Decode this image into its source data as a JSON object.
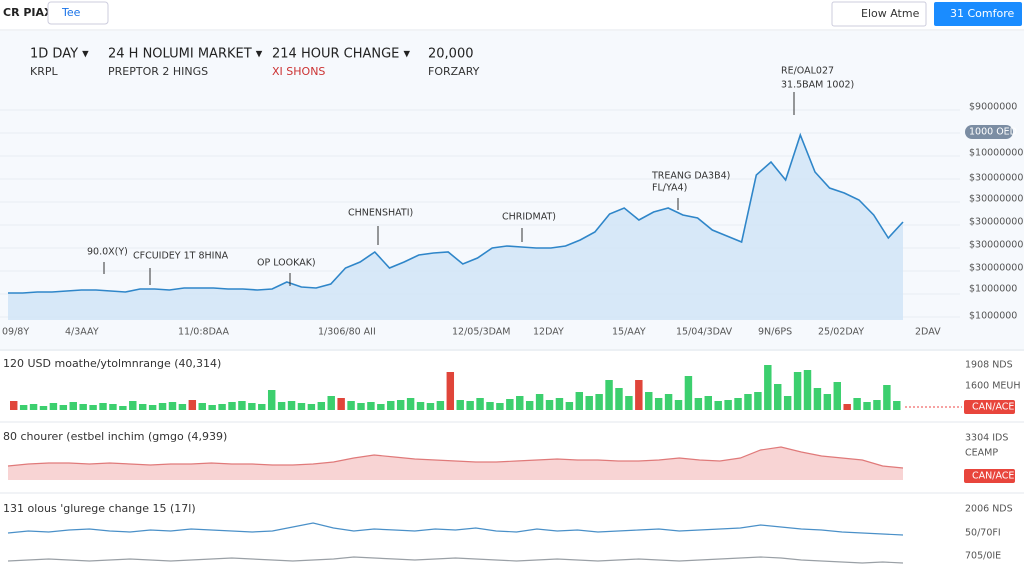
{
  "header": {
    "logo": "CR PIAX",
    "dropdown": "Tee",
    "button_secondary": "Elow Atme",
    "button_primary": "31 Comfore"
  },
  "stats": [
    {
      "title": "1D DAY ▾",
      "sub": "KRPL"
    },
    {
      "title": "24 H NOLUMI MARKET ▾",
      "sub": "PREPTOR 2 HINGS"
    },
    {
      "title": "214 HOUR CHANGE ▾",
      "sub": "XI SHONS"
    },
    {
      "title": "20,000",
      "sub": "FORZARY"
    }
  ],
  "main_chart": {
    "type": "area",
    "values": [
      47,
      47,
      48,
      48,
      49,
      50,
      50,
      49,
      48,
      51,
      51,
      50,
      52,
      52,
      52,
      51,
      51,
      50,
      51,
      58,
      53,
      52,
      56,
      72,
      78,
      88,
      72,
      78,
      85,
      87,
      88,
      76,
      82,
      92,
      94,
      93,
      92,
      92,
      94,
      100,
      108,
      126,
      132,
      120,
      128,
      132,
      125,
      122,
      110,
      104,
      98,
      165,
      178,
      160,
      205,
      168,
      152,
      147,
      140,
      125,
      102,
      118
    ],
    "y_labels": [
      "$9000000",
      "1000 OED",
      "$10000000",
      "$30000000",
      "$30000000",
      "$30000000",
      "$30000000",
      "$30000000",
      "$1000000",
      "$1000000"
    ],
    "x_labels": [
      "09/8Y",
      "4/3AAY",
      "11/0:8DAA",
      "1/306/80 AII",
      "12/05/3DAM",
      "12DAY",
      "15/AAY",
      "15/04/3DAV",
      "9N/6PS",
      "25/02DAY",
      "2DAV"
    ],
    "annotations": [
      "90.0X(Y)",
      "CFCUIDEY 1T 8HINA",
      "OP LOOKAK)",
      "CHNENSHATI)",
      "CHRIDMAT)",
      "TREANG DA3B4)",
      "FL/YA4)",
      "RE/OAL027",
      "31.5BAM 1002)"
    ]
  },
  "volume_panel": {
    "type": "bar",
    "label": "120 USD moathe/ytolmnrange (40,314)",
    "right_labels": [
      "1908 NDS",
      "1600 MEUH"
    ],
    "badge": "CAN/ACED",
    "values": [
      9,
      5,
      6,
      4,
      7,
      5,
      8,
      6,
      5,
      7,
      6,
      4,
      9,
      6,
      5,
      7,
      8,
      6,
      10,
      7,
      5,
      6,
      8,
      9,
      7,
      6,
      20,
      8,
      9,
      7,
      6,
      8,
      14,
      12,
      9,
      7,
      8,
      6,
      9,
      10,
      12,
      8,
      7,
      9,
      38,
      10,
      9,
      12,
      8,
      7,
      11,
      14,
      9,
      16,
      10,
      12,
      8,
      18,
      14,
      16,
      30,
      22,
      14,
      30,
      18,
      12,
      16,
      10,
      34,
      12,
      14,
      9,
      10,
      12,
      16,
      18,
      45,
      26,
      14,
      38,
      40,
      22,
      16,
      28,
      6,
      12,
      8,
      10,
      25,
      9
    ],
    "down": [
      0,
      18,
      33,
      44,
      63,
      84
    ]
  },
  "panel_two": {
    "type": "area",
    "label": "80 chourer (estbel inchim (gmgo (4,939)",
    "right_labels": [
      "3304 IDS",
      "CEAMP"
    ],
    "badge": "CAN/ACED",
    "values": [
      14,
      16,
      17,
      17,
      16,
      17,
      16,
      15,
      16,
      16,
      17,
      16,
      16,
      15,
      15,
      16,
      18,
      22,
      25,
      23,
      21,
      20,
      19,
      18,
      18,
      19,
      20,
      21,
      20,
      20,
      19,
      19,
      20,
      22,
      20,
      19,
      22,
      30,
      33,
      28,
      24,
      22,
      20,
      14,
      12
    ]
  },
  "panel_three": {
    "type": "line",
    "label": "131 olous 'glurege change 15 (17l)",
    "right_labels": [
      "2006 NDS",
      "50/70FI",
      "705/0IE"
    ],
    "series": [
      {
        "name": "blue",
        "color": "#4a90c8",
        "values": [
          42,
          44,
          43,
          45,
          46,
          44,
          43,
          45,
          44,
          46,
          45,
          44,
          43,
          44,
          48,
          52,
          47,
          44,
          46,
          45,
          44,
          46,
          45,
          47,
          44,
          43,
          46,
          44,
          45,
          43,
          44,
          45,
          46,
          44,
          45,
          46,
          47,
          50,
          48,
          46,
          45,
          43,
          42,
          41,
          40
        ]
      },
      {
        "name": "gray",
        "color": "#9aa0a6",
        "values": [
          14,
          15,
          16,
          15,
          14,
          15,
          16,
          15,
          14,
          15,
          16,
          17,
          16,
          15,
          14,
          15,
          16,
          18,
          17,
          16,
          15,
          16,
          17,
          16,
          15,
          14,
          15,
          16,
          15,
          14,
          15,
          16,
          15,
          14,
          15,
          16,
          17,
          18,
          17,
          15,
          14,
          13,
          12,
          13,
          12
        ]
      }
    ]
  }
}
